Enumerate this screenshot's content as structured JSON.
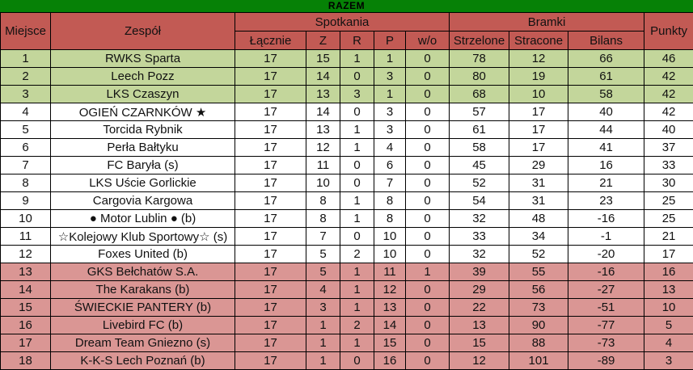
{
  "title": "RAZEM",
  "colors": {
    "title_bg": "#068106",
    "header_bg": "#c25a54",
    "top_zone_bg": "#c3d69b",
    "mid_zone_bg": "#ffffff",
    "bottom_zone_bg": "#da9694",
    "border": "#000000",
    "text": "#111111"
  },
  "table": {
    "col_headers": {
      "miejsce": "Miejsce",
      "zespol": "Zespół",
      "spotkania": "Spotkania",
      "lacznie": "Łącznie",
      "z": "Z",
      "r": "R",
      "p": "P",
      "wo": "w/o",
      "bramki": "Bramki",
      "strzelone": "Strzelone",
      "stracone": "Stracone",
      "bilans": "Bilans",
      "punkty": "Punkty"
    },
    "rows": [
      {
        "place": "1",
        "team": "RWKS Sparta",
        "total": "17",
        "w": "15",
        "d": "1",
        "l": "1",
        "wo": "0",
        "scored": "78",
        "conceded": "12",
        "balance": "66",
        "points": "46",
        "zone": "top"
      },
      {
        "place": "2",
        "team": "Leech Pozz",
        "total": "17",
        "w": "14",
        "d": "0",
        "l": "3",
        "wo": "0",
        "scored": "80",
        "conceded": "19",
        "balance": "61",
        "points": "42",
        "zone": "top"
      },
      {
        "place": "3",
        "team": "LKS Czaszyn",
        "total": "17",
        "w": "13",
        "d": "3",
        "l": "1",
        "wo": "0",
        "scored": "68",
        "conceded": "10",
        "balance": "58",
        "points": "42",
        "zone": "top"
      },
      {
        "place": "4",
        "team": "OGIEŃ CZARNKÓW ★",
        "total": "17",
        "w": "14",
        "d": "0",
        "l": "3",
        "wo": "0",
        "scored": "57",
        "conceded": "17",
        "balance": "40",
        "points": "42",
        "zone": "mid"
      },
      {
        "place": "5",
        "team": "Torcida Rybnik",
        "total": "17",
        "w": "13",
        "d": "1",
        "l": "3",
        "wo": "0",
        "scored": "61",
        "conceded": "17",
        "balance": "44",
        "points": "40",
        "zone": "mid"
      },
      {
        "place": "6",
        "team": "Perła Bałtyku",
        "total": "17",
        "w": "12",
        "d": "1",
        "l": "4",
        "wo": "0",
        "scored": "58",
        "conceded": "17",
        "balance": "41",
        "points": "37",
        "zone": "mid"
      },
      {
        "place": "7",
        "team": "FC Baryła (s)",
        "total": "17",
        "w": "11",
        "d": "0",
        "l": "6",
        "wo": "0",
        "scored": "45",
        "conceded": "29",
        "balance": "16",
        "points": "33",
        "zone": "mid"
      },
      {
        "place": "8",
        "team": "LKS Uście Gorlickie",
        "total": "17",
        "w": "10",
        "d": "0",
        "l": "7",
        "wo": "0",
        "scored": "52",
        "conceded": "31",
        "balance": "21",
        "points": "30",
        "zone": "mid"
      },
      {
        "place": "9",
        "team": "Cargovia Kargowa",
        "total": "17",
        "w": "8",
        "d": "1",
        "l": "8",
        "wo": "0",
        "scored": "54",
        "conceded": "31",
        "balance": "23",
        "points": "25",
        "zone": "mid"
      },
      {
        "place": "10",
        "team": "● Motor Lublin ● (b)",
        "total": "17",
        "w": "8",
        "d": "1",
        "l": "8",
        "wo": "0",
        "scored": "32",
        "conceded": "48",
        "balance": "-16",
        "points": "25",
        "zone": "mid"
      },
      {
        "place": "11",
        "team": "☆Kolejowy Klub Sportowy☆ (s)",
        "total": "17",
        "w": "7",
        "d": "0",
        "l": "10",
        "wo": "0",
        "scored": "33",
        "conceded": "34",
        "balance": "-1",
        "points": "21",
        "zone": "mid"
      },
      {
        "place": "12",
        "team": "Foxes United (b)",
        "total": "17",
        "w": "5",
        "d": "2",
        "l": "10",
        "wo": "0",
        "scored": "32",
        "conceded": "52",
        "balance": "-20",
        "points": "17",
        "zone": "mid"
      },
      {
        "place": "13",
        "team": "GKS Bełchatów S.A.",
        "total": "17",
        "w": "5",
        "d": "1",
        "l": "11",
        "wo": "1",
        "scored": "39",
        "conceded": "55",
        "balance": "-16",
        "points": "16",
        "zone": "bottom"
      },
      {
        "place": "14",
        "team": "The Karakans (b)",
        "total": "17",
        "w": "4",
        "d": "1",
        "l": "12",
        "wo": "0",
        "scored": "29",
        "conceded": "56",
        "balance": "-27",
        "points": "13",
        "zone": "bottom"
      },
      {
        "place": "15",
        "team": "ŚWIECKIE PANTERY (b)",
        "total": "17",
        "w": "3",
        "d": "1",
        "l": "13",
        "wo": "0",
        "scored": "22",
        "conceded": "73",
        "balance": "-51",
        "points": "10",
        "zone": "bottom"
      },
      {
        "place": "16",
        "team": "Livebird FC (b)",
        "total": "17",
        "w": "1",
        "d": "2",
        "l": "14",
        "wo": "0",
        "scored": "13",
        "conceded": "90",
        "balance": "-77",
        "points": "5",
        "zone": "bottom"
      },
      {
        "place": "17",
        "team": "Dream Team Gniezno (s)",
        "total": "17",
        "w": "1",
        "d": "1",
        "l": "15",
        "wo": "0",
        "scored": "15",
        "conceded": "88",
        "balance": "-73",
        "points": "4",
        "zone": "bottom"
      },
      {
        "place": "18",
        "team": "K-K-S Lech Poznań (b)",
        "total": "17",
        "w": "1",
        "d": "0",
        "l": "16",
        "wo": "0",
        "scored": "12",
        "conceded": "101",
        "balance": "-89",
        "points": "3",
        "zone": "bottom"
      }
    ]
  }
}
